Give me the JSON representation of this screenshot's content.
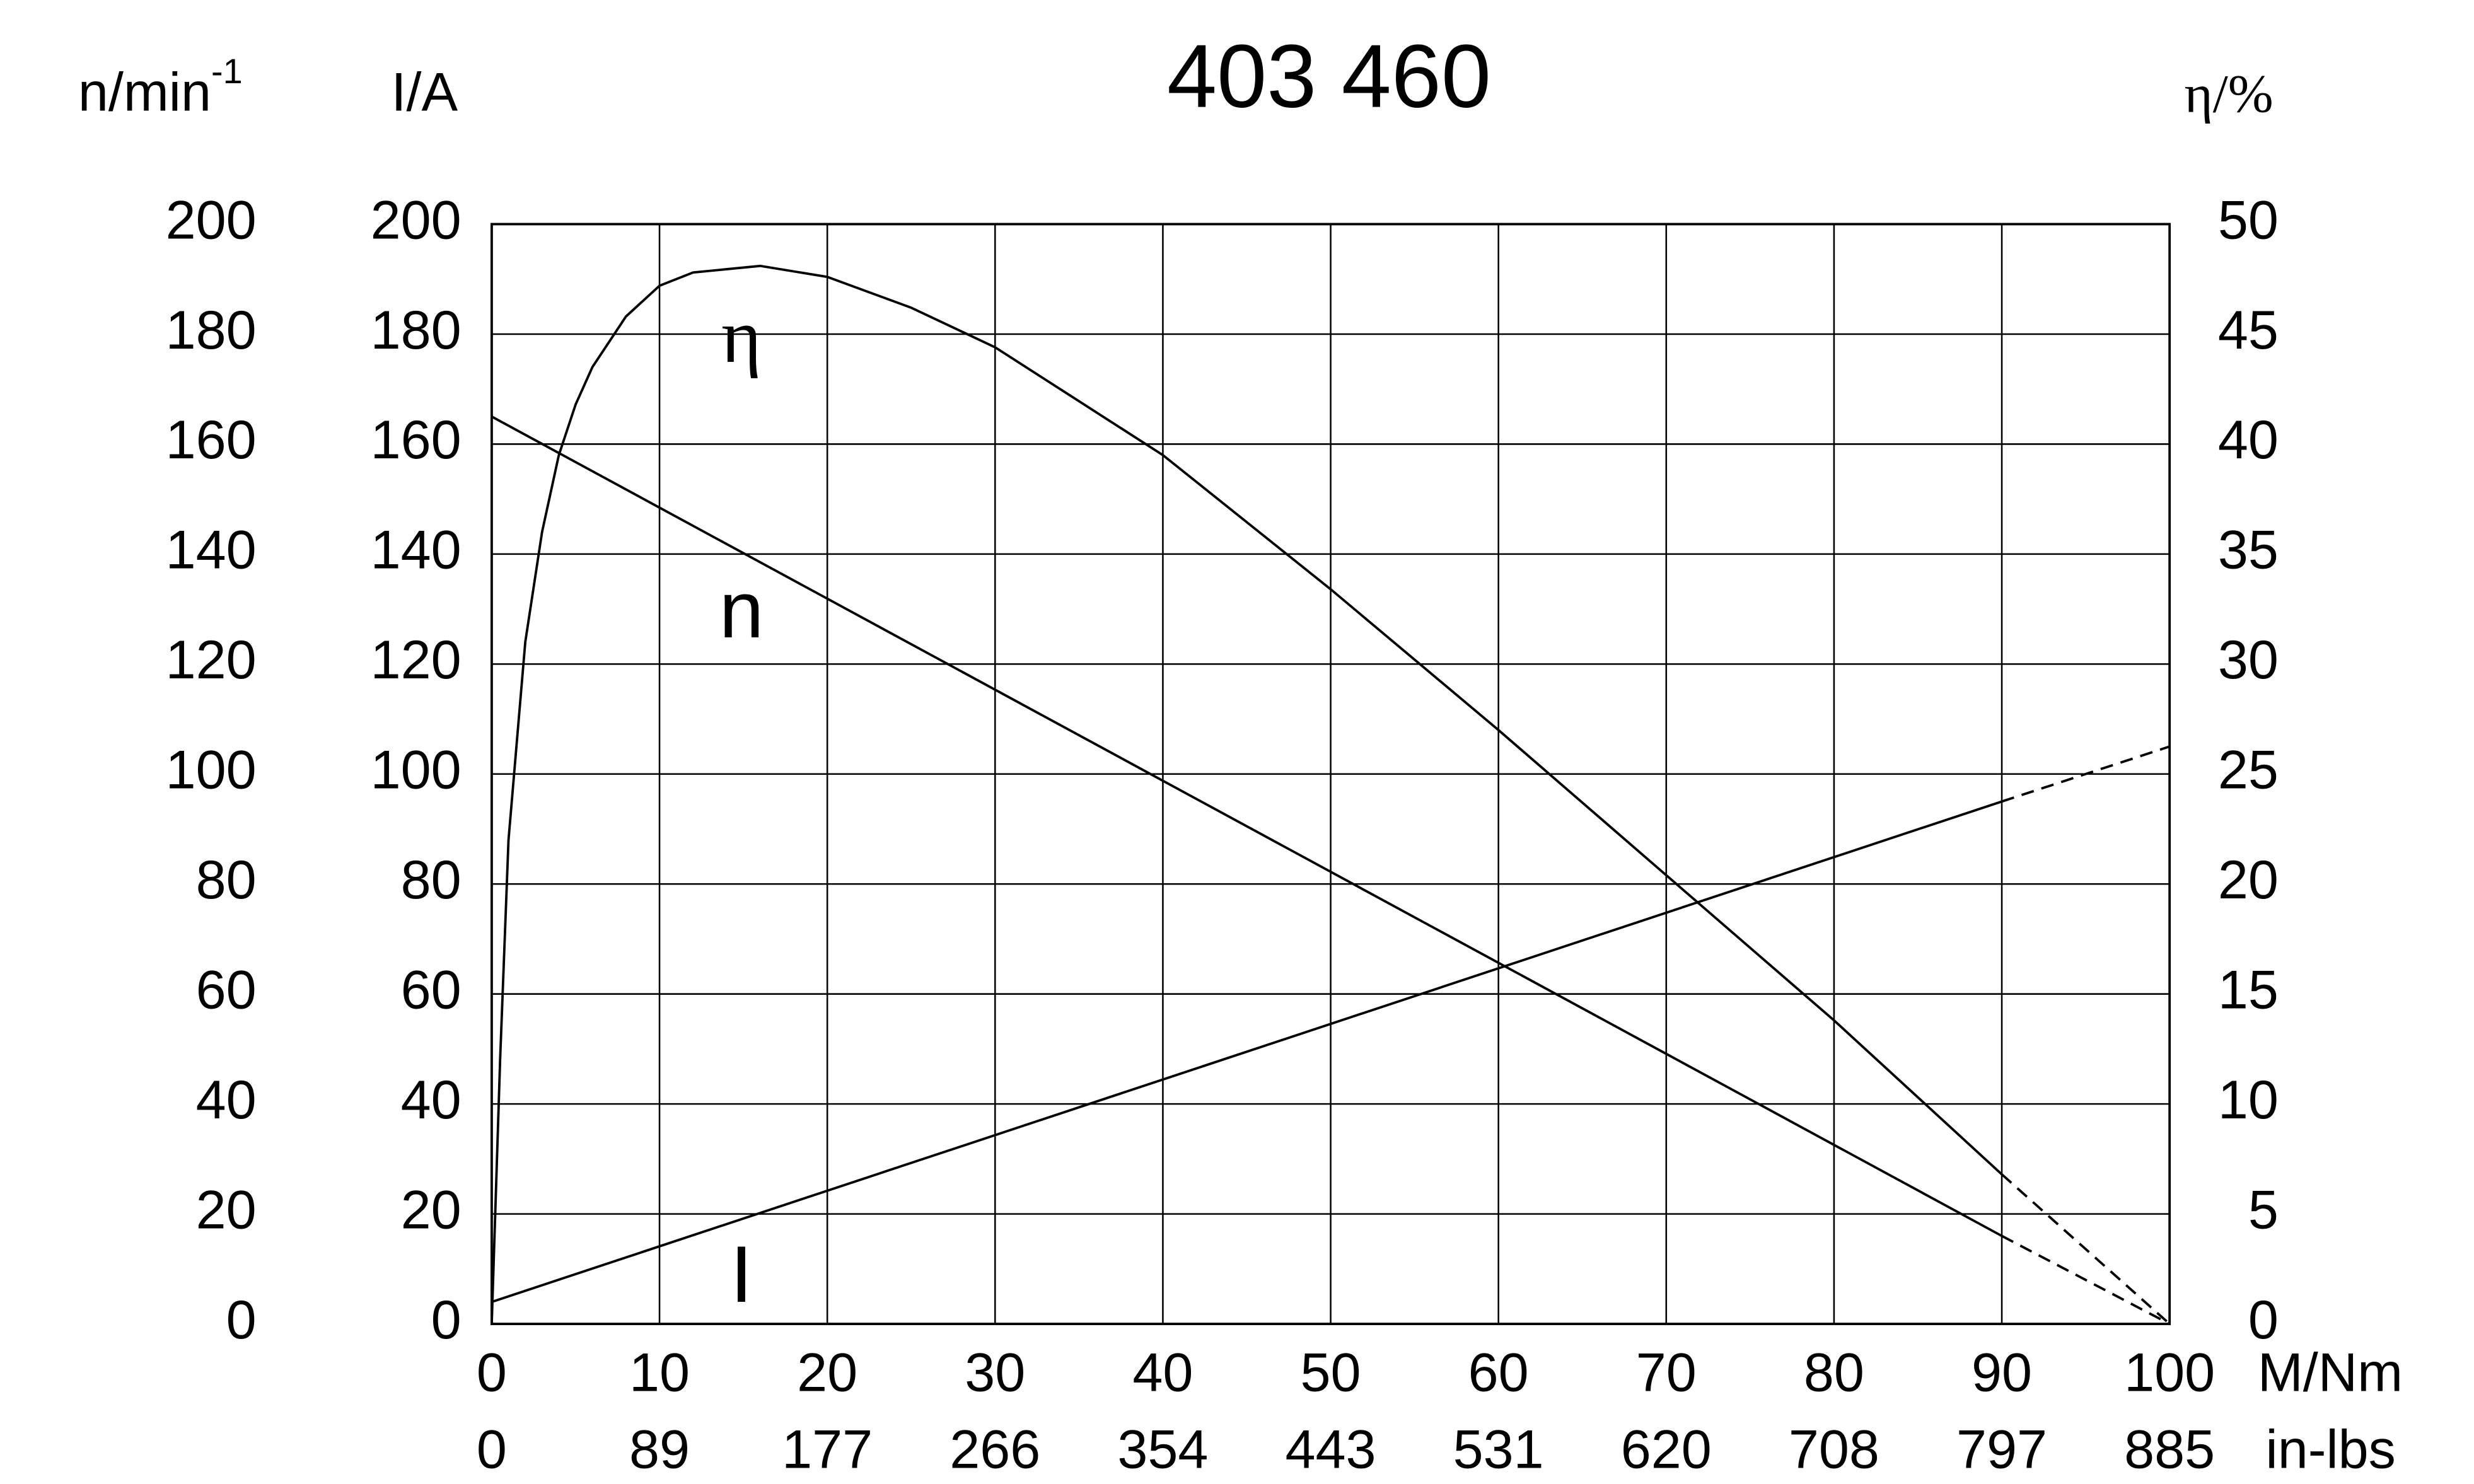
{
  "chart_data": {
    "type": "line",
    "title": "403 460",
    "xlabel": "M/Nm",
    "xlim": [
      0,
      100
    ],
    "xticks": [
      0,
      10,
      20,
      30,
      40,
      50,
      60,
      70,
      80,
      90,
      100
    ],
    "x2label": "in-lbs",
    "x2ticks": [
      0,
      {
        "value": 10,
        "label": "89"
      },
      {
        "value": 20,
        "label": "177"
      },
      {
        "value": 30,
        "label": "266"
      },
      {
        "value": 40,
        "label": "354"
      },
      {
        "value": 50,
        "label": "443"
      },
      {
        "value": 60,
        "label": "531"
      },
      {
        "value": 70,
        "label": "620"
      },
      {
        "value": 80,
        "label": "708"
      },
      {
        "value": 90,
        "label": "797"
      },
      {
        "value": 100,
        "label": "885"
      }
    ],
    "yaxes": [
      {
        "label": "n/min",
        "label_sup": "-1",
        "ylim": [
          0,
          200
        ],
        "yticks": [
          0,
          20,
          40,
          60,
          80,
          100,
          120,
          140,
          160,
          180,
          200
        ]
      },
      {
        "label": "I/A",
        "ylim": [
          0,
          200
        ],
        "yticks": [
          0,
          20,
          40,
          60,
          80,
          100,
          120,
          140,
          160,
          180,
          200
        ]
      }
    ],
    "y2label": "η/%",
    "y2lim": [
      0,
      50
    ],
    "y2ticks": [
      0,
      5,
      10,
      15,
      20,
      25,
      30,
      35,
      40,
      45,
      50
    ],
    "grid": true,
    "dashed_after": 90,
    "series": [
      {
        "name": "η",
        "axis": "y2",
        "color": "#000000",
        "x": [
          0,
          0.5,
          1,
          2,
          3,
          4,
          5,
          6,
          8,
          10,
          12,
          16,
          20,
          25,
          30,
          40,
          50,
          60,
          70,
          80,
          90,
          100
        ],
        "values": [
          0,
          12,
          22,
          31,
          36,
          39.5,
          41.8,
          43.5,
          45.8,
          47.2,
          47.8,
          48.1,
          47.6,
          46.2,
          44.4,
          39.5,
          33.4,
          27,
          20.4,
          13.8,
          6.8,
          0
        ]
      },
      {
        "name": "n",
        "axis": "y",
        "color": "#000000",
        "x": [
          0,
          90,
          100
        ],
        "values": [
          165,
          16,
          0
        ]
      },
      {
        "name": "I",
        "axis": "y",
        "color": "#000000",
        "x": [
          0,
          90,
          100
        ],
        "values": [
          4,
          95,
          105
        ]
      }
    ]
  }
}
